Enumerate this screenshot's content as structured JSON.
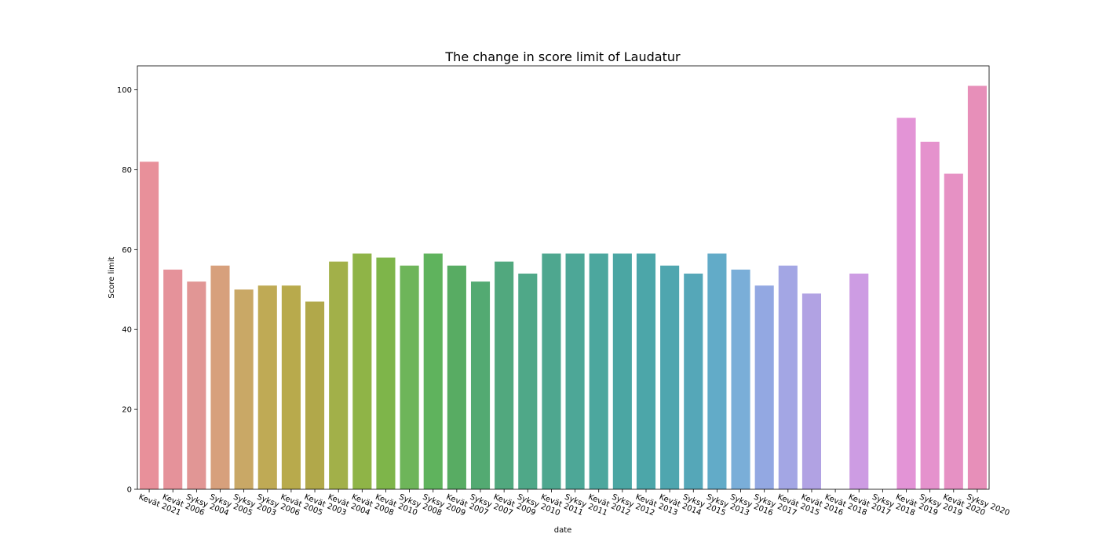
{
  "chart_data": {
    "type": "bar",
    "title": "The change in score limit of Laudatur",
    "xlabel": "date",
    "ylabel": "Score limit",
    "ylim": [
      0,
      106
    ],
    "yticks": [
      0,
      20,
      40,
      60,
      80,
      100
    ],
    "grid": false,
    "legend": "none",
    "categories": [
      "Kevät 2021",
      "Kevät 2006",
      "Syksy 2004",
      "Syksy 2005",
      "Syksy 2003",
      "Syksy 2006",
      "Kevät 2005",
      "Kevät 2003",
      "Kevät 2004",
      "Kevät 2008",
      "Kevät 2010",
      "Syksy 2008",
      "Syksy 2009",
      "Kevät 2007",
      "Syksy 2007",
      "Kevät 2009",
      "Syksy 2010",
      "Kevät 2011",
      "Syksy 2011",
      "Kevät 2012",
      "Syksy 2012",
      "Kevät 2013",
      "Kevät 2014",
      "Syksy 2015",
      "Syksy 2013",
      "Syksy 2016",
      "Syksy 2017",
      "Kevät 2015",
      "Kevät 2016",
      "Kevät 2018",
      "Kevät 2017",
      "Syksy 2018",
      "Kevät 2019",
      "Syksy 2019",
      "Kevät 2020",
      "Syksy 2020"
    ],
    "values": [
      82,
      55,
      52,
      56,
      50,
      51,
      51,
      47,
      57,
      59,
      58,
      56,
      59,
      56,
      52,
      57,
      54,
      59,
      59,
      59,
      59,
      59,
      56,
      54,
      59,
      55,
      51,
      56,
      49,
      null,
      54,
      null,
      93,
      87,
      79,
      101
    ],
    "colors": [
      "#e8909a",
      "#e5929a",
      "#e19695",
      "#d7a07c",
      "#c9a866",
      "#bfaa55",
      "#b8aa4c",
      "#b1a84a",
      "#a2b049",
      "#8fb447",
      "#7eb54a",
      "#6eb55a",
      "#5fb35d",
      "#58ac63",
      "#53aa72",
      "#51a87e",
      "#4fa888",
      "#4ea78f",
      "#4da797",
      "#4ca79e",
      "#4ba6a3",
      "#4ca6a9",
      "#4fa6af",
      "#55a7b8",
      "#62abc8",
      "#7aaed8",
      "#93a8e2",
      "#a3a6e4",
      "#b1a2e3",
      "#bf9fe3",
      "#cd9ce3",
      "#da97df",
      "#e394d6",
      "#e592cd",
      "#e691c4",
      "#e78fb9"
    ]
  }
}
